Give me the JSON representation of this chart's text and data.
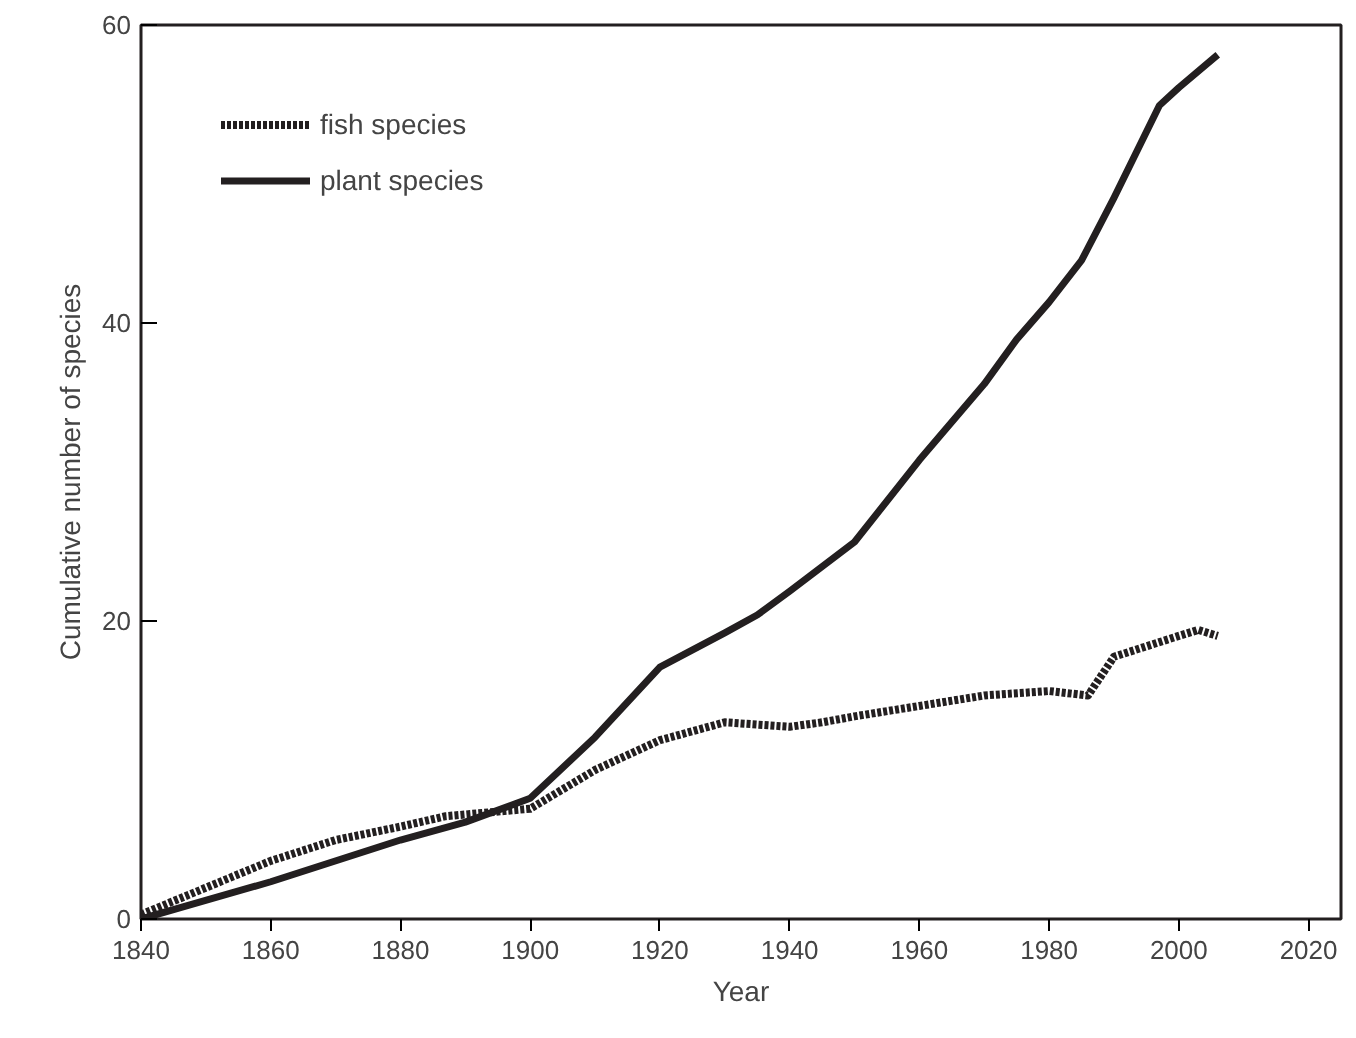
{
  "chart_data": {
    "type": "line",
    "xlabel": "Year",
    "ylabel": "Cumulative number of species",
    "xlim": [
      1840,
      2025
    ],
    "ylim": [
      0,
      60
    ],
    "xticks": [
      1840,
      1860,
      1880,
      1900,
      1920,
      1940,
      1960,
      1980,
      2000,
      2020
    ],
    "yticks": [
      0,
      20,
      40,
      60
    ],
    "grid": false,
    "legend": "top left",
    "marker": "none",
    "series": [
      {
        "name": "fish species",
        "color": "#231f20",
        "line_style": "dotted",
        "x": [
          1840,
          1860,
          1870,
          1880,
          1887,
          1900,
          1910,
          1920,
          1930,
          1940,
          1945,
          1950,
          1960,
          1970,
          1980,
          1986,
          1990,
          2000,
          2003,
          2006
        ],
        "values": [
          0.3,
          3.9,
          5.3,
          6.2,
          6.9,
          7.4,
          10,
          12,
          13.2,
          12.9,
          13.2,
          13.6,
          14.3,
          15.0,
          15.3,
          15.0,
          17.6,
          19,
          19.4,
          19.0
        ]
      },
      {
        "name": "plant species",
        "color": "#231f20",
        "line_style": "solid",
        "x": [
          1840,
          1860,
          1880,
          1890,
          1900,
          1910,
          1920,
          1930,
          1935,
          1940,
          1950,
          1960,
          1970,
          1975,
          1980,
          1985,
          1990,
          1997,
          2000,
          2006
        ],
        "values": [
          0,
          2.5,
          5.3,
          6.5,
          8.1,
          12.2,
          16.9,
          19.2,
          20.4,
          22,
          25.3,
          30.8,
          35.9,
          38.9,
          41.4,
          44.2,
          48.4,
          54.6,
          55.8,
          58
        ]
      }
    ]
  }
}
